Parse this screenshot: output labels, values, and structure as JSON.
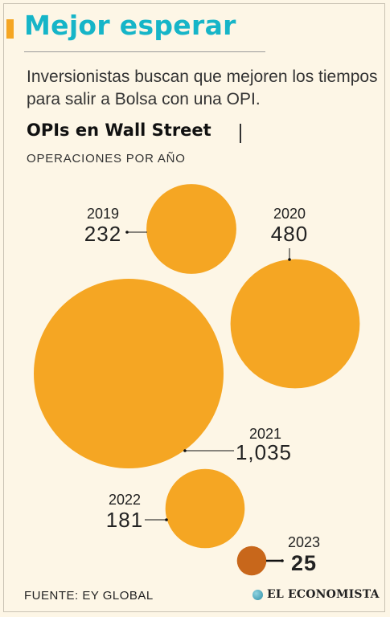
{
  "header": {
    "title": "Mejor esperar",
    "subtitle": "Inversionistas buscan que mejoren los tiempos para salir a Bolsa con una OPI."
  },
  "chart_heading": {
    "title": "OPIs en Wall Street",
    "subtitle": "OPERACIONES POR AÑO"
  },
  "colors": {
    "bubble": "#f5a623",
    "bubble_highlight": "#c8671b",
    "title": "#16b5c8"
  },
  "chart_data": {
    "type": "bubble",
    "title": "OPIs en Wall Street",
    "subtitle": "OPERACIONES POR AÑO",
    "categories": [
      "2019",
      "2020",
      "2021",
      "2022",
      "2023"
    ],
    "values": [
      232,
      480,
      1035,
      181,
      25
    ],
    "value_labels": [
      "232",
      "480",
      "1,035",
      "181",
      "25"
    ],
    "highlighted": "2023"
  },
  "footer": {
    "source": "FUENTE: EY GLOBAL",
    "logo_text": "EL ECONOMISTA"
  }
}
